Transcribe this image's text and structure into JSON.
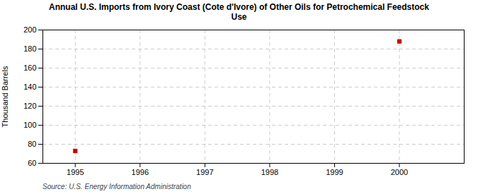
{
  "chart_data": {
    "type": "scatter",
    "title": "Annual U.S. Imports from Ivory Coast (Cote d'Ivore) of Other Oils for Petrochemical Feedstock\nUse",
    "ylabel": "Thousand Barrels",
    "annotation": "Source: U.S. Energy Information Administration",
    "x": [
      1995,
      2000
    ],
    "values": [
      73,
      188
    ],
    "color": "#cc0000",
    "marker": "square",
    "xlim": [
      1994.5,
      2001.0
    ],
    "ylim": [
      60,
      200
    ],
    "xticks": [
      1995,
      1996,
      1997,
      1998,
      1999,
      2000
    ],
    "yticks": [
      60,
      80,
      100,
      120,
      140,
      160,
      180,
      200
    ],
    "grid": true
  }
}
